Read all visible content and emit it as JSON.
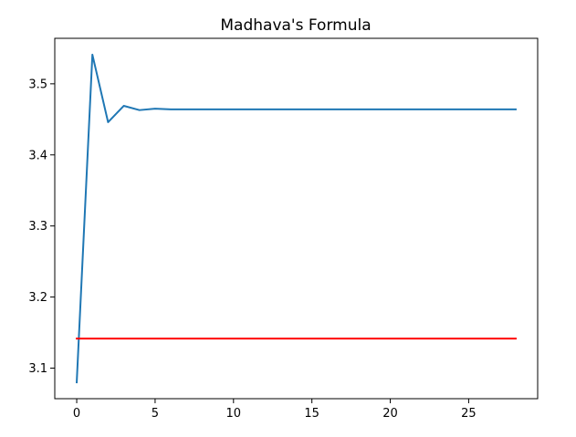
{
  "chart_data": {
    "type": "line",
    "title": "Madhava's Formula",
    "xlabel": "",
    "ylabel": "",
    "xlim": [
      -1.4,
      29.4
    ],
    "ylim": [
      3.057,
      3.564
    ],
    "xticks": [
      0,
      5,
      10,
      15,
      20,
      25
    ],
    "yticks": [
      3.1,
      3.2,
      3.3,
      3.4,
      3.5
    ],
    "xtick_labels": [
      "0",
      "5",
      "10",
      "15",
      "20",
      "25"
    ],
    "ytick_labels": [
      "3.1",
      "3.2",
      "3.3",
      "3.4",
      "3.5"
    ],
    "grid": false,
    "legend": "none",
    "series": [
      {
        "color": "#1f77b4",
        "x": [
          0,
          1,
          2,
          3,
          4,
          5,
          6,
          7,
          8,
          9,
          10,
          11,
          12,
          13,
          14,
          15,
          16,
          17,
          18,
          19,
          20,
          21,
          22,
          23,
          24,
          25,
          26,
          27,
          28
        ],
        "y": [
          3.08,
          3.541,
          3.446,
          3.469,
          3.463,
          3.465,
          3.464,
          3.464,
          3.464,
          3.464,
          3.464,
          3.464,
          3.464,
          3.464,
          3.464,
          3.464,
          3.464,
          3.464,
          3.464,
          3.464,
          3.464,
          3.464,
          3.464,
          3.464,
          3.464,
          3.464,
          3.464,
          3.464,
          3.464
        ]
      },
      {
        "color": "#ff0000",
        "x": [
          0,
          28
        ],
        "y": [
          3.1416,
          3.1416
        ]
      }
    ]
  }
}
